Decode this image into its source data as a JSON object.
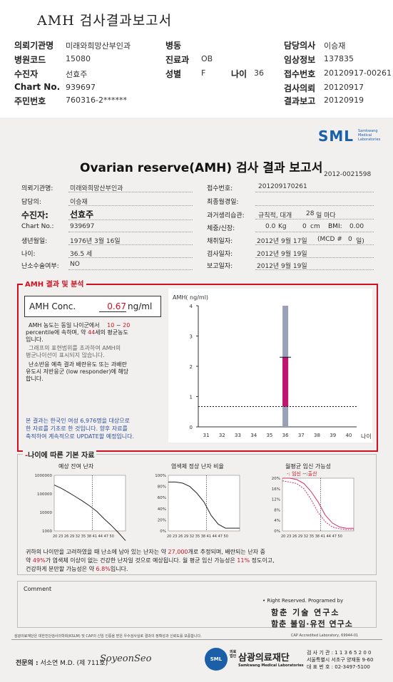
{
  "header": {
    "title": "AMH 검사결과보고서",
    "fields": [
      {
        "label": "의뢰기관명",
        "value": "미래와희망산부인과"
      },
      {
        "label": "병동",
        "value": ""
      },
      {
        "label": "담당의사",
        "value": "이승재"
      },
      {
        "label": "병원코드",
        "value": "15080"
      },
      {
        "label": "진료과",
        "value": "OB"
      },
      {
        "label": "임상정보",
        "value": "137835"
      },
      {
        "label": "수진자",
        "value": "선효주"
      },
      {
        "label": "성별",
        "value": "F"
      },
      {
        "label": "나이",
        "value": "36"
      },
      {
        "label": "접수번호",
        "value": "20120917-00261"
      },
      {
        "label": "Chart No.",
        "value": "939697"
      },
      {
        "label": "검사의뢰",
        "value": "20120917"
      },
      {
        "label": "주민번호",
        "value": "760316-2******"
      },
      {
        "label": "결과보고",
        "value": "20120919"
      }
    ]
  },
  "report": {
    "logo": "SML",
    "logo_sub1": "Samkwang",
    "logo_sub2": "Medical",
    "logo_sub3": "Laboratories",
    "title": "Ovarian reserve(AMH) 검사 결과 보고서",
    "doc_no": "2012-0021598",
    "left_fields": [
      {
        "label": "의뢰기관명:",
        "value": "미래와희망산부인과"
      },
      {
        "label": "담당의:",
        "value": "이승재"
      },
      {
        "label": "수진자:",
        "value": "선효주"
      },
      {
        "label": "Chart No.:",
        "value": "939697"
      },
      {
        "label": "생년월일:",
        "value": "1976년 3월 16일"
      },
      {
        "label": "나이:",
        "value": "36.5 세"
      },
      {
        "label": "난소수술여부:",
        "value": "NO"
      }
    ],
    "right_fields": {
      "reg_label": "접수번호:",
      "reg_value": "201209170261",
      "last_label": "최종월경일:",
      "cycle_label": "과거생리습관:",
      "cycle_value": "규칙적, 대개",
      "cycle_days": "28",
      "cycle_unit": "일 마다",
      "body_label": "체중/신장:",
      "weight": "0.0",
      "weight_unit": "Kg",
      "height": "0",
      "height_unit": "cm",
      "bmi_label": "BMI:",
      "bmi": "0.00",
      "draw_label": "채취일자:",
      "draw_value": "2012년 9월 17일",
      "mcd": "(MCD #",
      "mcd_val": "0",
      "mcd_unit": "일)",
      "test_label": "검사일자:",
      "test_value": "2012년 9월 19일",
      "report_label": "보고일자:",
      "report_value": "2012년 9월 19일"
    },
    "analysis": {
      "section_title": "AMH 결과 및 분석",
      "conc_label": "AMH Conc.",
      "conc_value": "0.67",
      "conc_unit": "ng/ml",
      "p1a": "AMH 농도는 동일 나이군에서",
      "p1_range_lo": "10",
      "p1_range_sep": "~",
      "p1_range_hi": "20",
      "p1b": "percentile에 속하며, 약",
      "p1_age": "44",
      "p1c": "세의 평균농도",
      "p1d": "입니다.",
      "p2a": "그래프의 표현범위를 초과하여 AMH의",
      "p2b": "평균나이선이 표시되지 않습니다.",
      "p3a": "난소반응 예측 결과 배란유도 또는 과배란",
      "p3b": "유도시 저반응군 (low responder)에 해당",
      "p3c": "합니다.",
      "note1": "본 결과는 한국인 여성 6,976명을 대상으로",
      "note2": "한 자료를 기초로 한 것입니다. 향후 자료를",
      "note3": "축적하여 계속적으로 UPDATE할 예정입니다."
    },
    "basic": {
      "section_title": "나이에 따른 기본 자료",
      "chart1_title": "예상 잔여 난자",
      "chart2_title": "염색체 정상 난자 비율",
      "chart3_title": "월평균 임신 가능성",
      "chart3_legend_a": "-: 임신",
      "chart3_legend_sep": "--:",
      "chart3_legend_b": "출산",
      "s1a": "귀하의 나이만을 고려하였을 때 난소에 남아 있는 난자는 약",
      "s1_eggs": "27,000",
      "s1b": "개로 추정되며, 배란되는 난자 중",
      "s2a": "약",
      "s2_pct": "49%",
      "s2b": "가 염색체 이상이 없는 건강한 난자일 것으로 예상됩니다. 월 평균 임신 가능성은",
      "s2_preg": "11%",
      "s2c": "정도이고,",
      "s3a": "건강하게 분만할 가능성은 약",
      "s3_birth": "6.8%",
      "s3b": "입니다."
    },
    "comment_label": "Comment",
    "rights": "• Right Reserved. Programed by",
    "lab1": "함춘 기술 연구소",
    "lab2": "함춘 불임·유전 연구소",
    "footer_note": "삼광의료재단은 대한진단검사의학회(KSLM) 및 CAP의 신임 인증을 받은 우수검사실로 결과의 정확성과 신뢰도를 보증합니다.",
    "cap": "CAP  Accredited  Laboratory,  69944-01",
    "doctor_label": "전문의 :",
    "doctor_name": "서소연 M.D.",
    "doctor_no": "(제 711호)",
    "signature": "SoyeonSeo",
    "foundation_pre1": "의료",
    "foundation_pre2": "법인",
    "foundation": "삼광의료재단",
    "foundation_en": "Samkwang Medical Laboratories",
    "sml_badge": "SML",
    "org_no": "검 사 기 관 : 1 1 3 6 5 2 0 0",
    "address": "서울특별시 서초구 양재동 9-60",
    "tel": "대 표 번 호 : 02-3497-5100"
  },
  "chart_data": [
    {
      "type": "bar",
      "title": "",
      "ylabel": "AMH( ng/ml)",
      "xlabel": "나이",
      "x": [
        31,
        32,
        33,
        34,
        35,
        36,
        37,
        38,
        39,
        40
      ],
      "ylim": [
        0,
        4
      ],
      "yticks": [
        0,
        1,
        2,
        3,
        4
      ],
      "normal_range": {
        "x": 36,
        "low": 0.0,
        "high": 4.0
      },
      "result_range": {
        "x": 36,
        "low": 0.67,
        "high": 2.3
      },
      "patient_value": 0.67
    },
    {
      "type": "line",
      "title": "예상 잔여 난자",
      "x": [
        20,
        23,
        26,
        29,
        32,
        35,
        38,
        41,
        44,
        47,
        50
      ],
      "xticks": "20 23 26 29 32 35 38 41 44 47 50",
      "yticks": [
        "1000000",
        "100000",
        "10000",
        "1000"
      ],
      "yscale": "log",
      "values": [
        300000,
        200000,
        120000,
        70000,
        40000,
        22000,
        11000,
        4500,
        2000,
        800,
        300
      ],
      "marker_x": 36
    },
    {
      "type": "line",
      "title": "염색체 정상 난자 비율",
      "x": [
        20,
        23,
        26,
        29,
        32,
        35,
        38,
        41,
        44,
        47,
        50
      ],
      "xticks": "20 23 26 29 32 35 38 41 44 47 50",
      "yticks": [
        "100%",
        "80%",
        "60%",
        "40%",
        "20%",
        "0%"
      ],
      "values": [
        88,
        88,
        86,
        80,
        68,
        52,
        28,
        12,
        5,
        5,
        5
      ],
      "marker_x": 36
    },
    {
      "type": "line",
      "title": "월평균 임신 가능성",
      "x": [
        20,
        23,
        26,
        29,
        32,
        35,
        38,
        41,
        44,
        47,
        50
      ],
      "xticks": "20 23 26 29 32 35 38 41 44 47 50",
      "yticks": [
        "20%",
        "16%",
        "12%",
        "8%",
        "4%",
        "0%"
      ],
      "series": [
        {
          "name": "임신",
          "values": [
            20,
            20,
            19.5,
            18,
            15,
            11,
            6,
            3,
            1.5,
            1,
            1
          ]
        },
        {
          "name": "출산",
          "values": [
            19,
            18.5,
            18,
            16,
            12,
            7,
            3.5,
            1.5,
            0.8,
            0.5,
            0.5
          ]
        }
      ],
      "marker_x": 36
    }
  ]
}
